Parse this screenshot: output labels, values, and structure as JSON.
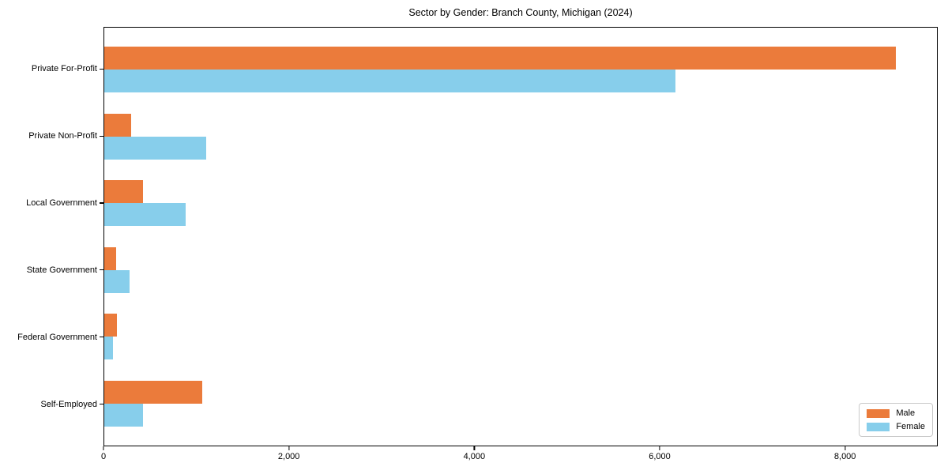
{
  "chart_data": {
    "type": "bar",
    "orientation": "horizontal",
    "title": "Sector by Gender: Branch County, Michigan (2024)",
    "categories": [
      "Private For-Profit",
      "Private Non-Profit",
      "Local Government",
      "State Government",
      "Federal Government",
      "Self-Employed"
    ],
    "series": [
      {
        "name": "Male",
        "color": "#EB7B3B",
        "values": [
          8560,
          290,
          420,
          130,
          140,
          1060
        ]
      },
      {
        "name": "Female",
        "color": "#87CEEB",
        "values": [
          6170,
          1100,
          880,
          270,
          90,
          420
        ]
      }
    ],
    "xlim": [
      0,
      9000
    ],
    "xticks": [
      {
        "value": 0,
        "label": "0"
      },
      {
        "value": 2000,
        "label": "2,000"
      },
      {
        "value": 4000,
        "label": "4,000"
      },
      {
        "value": 6000,
        "label": "6,000"
      },
      {
        "value": 8000,
        "label": "8,000"
      }
    ],
    "xlabel": "",
    "ylabel": "",
    "grid": false,
    "legend_position": "lower right",
    "background_color": "#ffffff",
    "axis_color": "#000000",
    "legend_border_color": "#c9c9c9"
  }
}
